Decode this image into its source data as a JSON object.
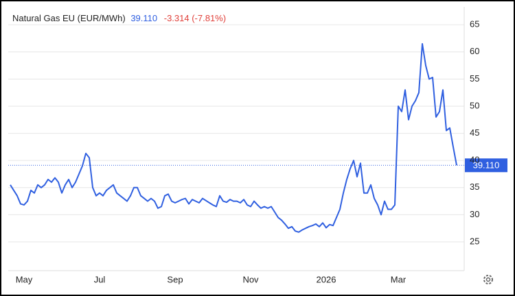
{
  "chart_data": {
    "type": "line",
    "title": "Natural Gas EU (EUR/MWh)",
    "last": "39.110",
    "change": "-3.314 (-7.81%)",
    "categories": [
      null,
      null,
      null,
      null,
      "May",
      null,
      null,
      null,
      null,
      null,
      null,
      null,
      null,
      null,
      null,
      null,
      null,
      null,
      null,
      null,
      null,
      null,
      null,
      null,
      null,
      null,
      "Jul",
      null,
      null,
      null,
      null,
      null,
      null,
      null,
      null,
      null,
      null,
      null,
      null,
      null,
      null,
      null,
      null,
      null,
      null,
      null,
      null,
      null,
      "Sep",
      null,
      null,
      null,
      null,
      null,
      null,
      null,
      null,
      null,
      null,
      null,
      null,
      null,
      null,
      null,
      null,
      null,
      null,
      null,
      null,
      null,
      "Nov",
      null,
      null,
      null,
      null,
      null,
      null,
      null,
      null,
      null,
      null,
      null,
      null,
      null,
      null,
      null,
      null,
      null,
      null,
      null,
      null,
      null,
      "2026",
      null,
      null,
      null,
      null,
      null,
      null,
      null,
      null,
      null,
      null,
      null,
      null,
      null,
      null,
      null,
      null,
      null,
      null,
      null,
      null,
      "Mar",
      null,
      null,
      null,
      null,
      null,
      null,
      null,
      null,
      null,
      null,
      null,
      null,
      null,
      null,
      null,
      null,
      null
    ],
    "series": [
      {
        "name": "Natural Gas EU (EUR/MWh)",
        "color": "#2f5fe0",
        "values": [
          35.5,
          34.5,
          33.5,
          32,
          31.8,
          32.5,
          34.5,
          34,
          35.5,
          35,
          35.5,
          36.5,
          36,
          36.8,
          36,
          34,
          35.5,
          36.5,
          35,
          36,
          37.5,
          39,
          41.3,
          40.5,
          35,
          33.5,
          34,
          33.5,
          34.5,
          35,
          35.5,
          34,
          33.5,
          33,
          32.5,
          33.5,
          35,
          35,
          33.5,
          33,
          32.5,
          33,
          32.5,
          31.2,
          31.5,
          33.5,
          33.8,
          32.5,
          32.2,
          32.5,
          32.8,
          33,
          32,
          32.8,
          32.5,
          32.2,
          33,
          32.6,
          32.2,
          31.8,
          31.5,
          33.5,
          32.5,
          32.3,
          32.8,
          32.5,
          32.5,
          32.2,
          32.8,
          31.8,
          31.5,
          32.5,
          31.8,
          31.2,
          31.5,
          31.2,
          31.5,
          30.5,
          29.5,
          29,
          28.3,
          27.5,
          27.8,
          27,
          26.8,
          27.2,
          27.5,
          27.8,
          28,
          28.3,
          27.8,
          28.5,
          27.6,
          28.2,
          28,
          29.5,
          31,
          34,
          36.5,
          38.5,
          40,
          37,
          39.5,
          34,
          34,
          35.5,
          33,
          31.8,
          30,
          32.5,
          31,
          31,
          31.8,
          50,
          49,
          53,
          47.5,
          50,
          51,
          52.5,
          61.5,
          57.5,
          55,
          55.3,
          48,
          49,
          53,
          45.5,
          46,
          42.5,
          39.11
        ]
      }
    ],
    "ylim": [
      19.7,
      68.3
    ],
    "yticks": [
      25,
      30,
      35,
      40,
      45,
      50,
      55,
      60,
      65
    ],
    "grid": true,
    "title_color": "#222222",
    "last_color": "#2f5fe0",
    "change_color": "#e0403a"
  }
}
